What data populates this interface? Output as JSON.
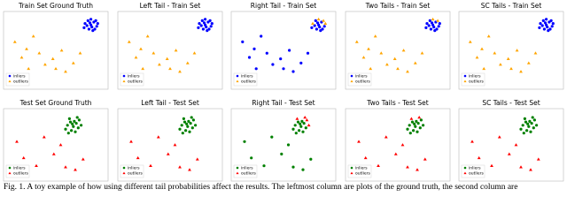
{
  "chart_data": [
    {
      "type": "scatter",
      "title": "Train Set Ground Truth",
      "xlim": [
        0,
        100
      ],
      "ylim": [
        0,
        100
      ],
      "legend": "lower left",
      "series": [
        {
          "name": "inliers",
          "color": "#0000ff",
          "marker": "circle",
          "x": [
            80,
            83,
            86,
            89,
            92,
            84,
            88,
            91,
            79,
            86,
            93,
            82,
            87,
            90,
            85
          ],
          "y": [
            88,
            92,
            86,
            90,
            84,
            80,
            78,
            92,
            82,
            94,
            88,
            85,
            83,
            80,
            89
          ]
        },
        {
          "name": "outliers",
          "color": "#ffa500",
          "marker": "triangle",
          "x": [
            8,
            27,
            20,
            33,
            47,
            56,
            39,
            22,
            60,
            68,
            75,
            50,
            15
          ],
          "y": [
            62,
            70,
            52,
            46,
            38,
            50,
            30,
            24,
            20,
            32,
            46,
            24,
            40
          ]
        }
      ]
    },
    {
      "type": "scatter",
      "title": "Left Tail - Train Set",
      "xlim": [
        0,
        100
      ],
      "ylim": [
        0,
        100
      ],
      "legend": "lower left",
      "series": [
        {
          "name": "inliers",
          "color": "#0000ff",
          "marker": "circle",
          "x": [
            80,
            83,
            86,
            89,
            92,
            84,
            88,
            91,
            79,
            86,
            93,
            82,
            87,
            90,
            85
          ],
          "y": [
            88,
            92,
            86,
            90,
            84,
            80,
            78,
            92,
            82,
            94,
            88,
            85,
            83,
            80,
            89
          ]
        },
        {
          "name": "outliers",
          "color": "#ffa500",
          "marker": "triangle",
          "x": [
            8,
            27,
            20,
            33,
            47,
            56,
            39,
            22,
            60,
            68,
            75,
            50,
            15
          ],
          "y": [
            62,
            70,
            52,
            46,
            38,
            50,
            30,
            24,
            20,
            32,
            46,
            24,
            40
          ]
        }
      ]
    },
    {
      "type": "scatter",
      "title": "Right Tail - Train Set",
      "xlim": [
        0,
        100
      ],
      "ylim": [
        0,
        100
      ],
      "legend": "lower left",
      "series": [
        {
          "name": "inliers",
          "color": "#0000ff",
          "marker": "circle",
          "x": [
            83,
            86,
            89,
            92,
            84,
            88,
            79,
            82,
            87,
            90,
            85,
            8,
            27,
            20,
            33,
            47,
            56,
            39,
            22,
            60,
            68,
            75,
            50,
            15
          ],
          "y": [
            92,
            86,
            90,
            84,
            80,
            78,
            82,
            85,
            83,
            80,
            89,
            62,
            70,
            52,
            46,
            38,
            50,
            30,
            24,
            20,
            32,
            46,
            24,
            40
          ]
        },
        {
          "name": "outliers",
          "color": "#ffa500",
          "marker": "triangle",
          "x": [
            80,
            91,
            86,
            93
          ],
          "y": [
            88,
            92,
            94,
            88
          ]
        }
      ]
    },
    {
      "type": "scatter",
      "title": "Two Tails - Train Set",
      "xlim": [
        0,
        100
      ],
      "ylim": [
        0,
        100
      ],
      "legend": "lower left",
      "series": [
        {
          "name": "inliers",
          "color": "#0000ff",
          "marker": "circle",
          "x": [
            80,
            83,
            86,
            89,
            92,
            84,
            88,
            79,
            93,
            82,
            87,
            90,
            85
          ],
          "y": [
            88,
            92,
            86,
            90,
            84,
            80,
            78,
            82,
            88,
            85,
            83,
            80,
            89
          ]
        },
        {
          "name": "outliers",
          "color": "#ffa500",
          "marker": "triangle",
          "x": [
            8,
            27,
            20,
            33,
            47,
            56,
            39,
            22,
            60,
            68,
            75,
            50,
            15,
            91,
            86
          ],
          "y": [
            62,
            70,
            52,
            46,
            38,
            50,
            30,
            24,
            20,
            32,
            46,
            24,
            40,
            92,
            94
          ]
        }
      ]
    },
    {
      "type": "scatter",
      "title": "SC Tails - Train Set",
      "xlim": [
        0,
        100
      ],
      "ylim": [
        0,
        100
      ],
      "legend": "lower left",
      "series": [
        {
          "name": "inliers",
          "color": "#0000ff",
          "marker": "circle",
          "x": [
            80,
            83,
            86,
            89,
            92,
            84,
            88,
            91,
            79,
            86,
            93,
            82,
            87,
            90,
            85
          ],
          "y": [
            88,
            92,
            86,
            90,
            84,
            80,
            78,
            92,
            82,
            94,
            88,
            85,
            83,
            80,
            89
          ]
        },
        {
          "name": "outliers",
          "color": "#ffa500",
          "marker": "triangle",
          "x": [
            8,
            27,
            20,
            33,
            47,
            56,
            39,
            22,
            60,
            68,
            75,
            50,
            15
          ],
          "y": [
            62,
            70,
            52,
            46,
            38,
            50,
            30,
            24,
            20,
            32,
            46,
            24,
            40
          ]
        }
      ]
    },
    {
      "type": "scatter",
      "title": "Test Set Ground Truth",
      "xlim": [
        0,
        100
      ],
      "ylim": [
        0,
        100
      ],
      "legend": "lower left",
      "series": [
        {
          "name": "inliers",
          "color": "#008000",
          "marker": "circle",
          "x": [
            62,
            65,
            68,
            71,
            74,
            66,
            70,
            60,
            73,
            64,
            76,
            69,
            63,
            72,
            67
          ],
          "y": [
            80,
            85,
            78,
            83,
            88,
            72,
            70,
            74,
            76,
            90,
            80,
            86,
            68,
            92,
            82
          ]
        },
        {
          "name": "outliers",
          "color": "#ff0000",
          "marker": "triangle",
          "x": [
            10,
            38,
            17,
            48,
            60,
            70,
            78,
            30,
            55
          ],
          "y": [
            55,
            62,
            30,
            36,
            16,
            12,
            28,
            18,
            50
          ]
        }
      ]
    },
    {
      "type": "scatter",
      "title": "Left Tail - Test Set",
      "xlim": [
        0,
        100
      ],
      "ylim": [
        0,
        100
      ],
      "legend": "lower left",
      "series": [
        {
          "name": "inliers",
          "color": "#008000",
          "marker": "circle",
          "x": [
            62,
            65,
            68,
            71,
            74,
            66,
            70,
            60,
            73,
            64,
            76,
            69,
            63,
            72,
            67
          ],
          "y": [
            80,
            85,
            78,
            83,
            88,
            72,
            70,
            74,
            76,
            90,
            80,
            86,
            68,
            92,
            82
          ]
        },
        {
          "name": "outliers",
          "color": "#ff0000",
          "marker": "triangle",
          "x": [
            10,
            38,
            17,
            48,
            60,
            70,
            78,
            30,
            55
          ],
          "y": [
            55,
            62,
            30,
            36,
            16,
            12,
            28,
            18,
            50
          ]
        }
      ]
    },
    {
      "type": "scatter",
      "title": "Right Tail - Test Set",
      "xlim": [
        0,
        100
      ],
      "ylim": [
        0,
        100
      ],
      "legend": "lower left",
      "series": [
        {
          "name": "inliers",
          "color": "#008000",
          "marker": "circle",
          "x": [
            62,
            65,
            68,
            71,
            66,
            70,
            60,
            73,
            69,
            63,
            67,
            10,
            38,
            17,
            48,
            60,
            70,
            78,
            30,
            55
          ],
          "y": [
            80,
            85,
            78,
            83,
            72,
            70,
            74,
            76,
            86,
            68,
            82,
            55,
            62,
            30,
            36,
            16,
            12,
            28,
            18,
            50
          ]
        },
        {
          "name": "outliers",
          "color": "#ff0000",
          "marker": "triangle",
          "x": [
            74,
            64,
            76,
            72
          ],
          "y": [
            88,
            90,
            80,
            92
          ]
        }
      ]
    },
    {
      "type": "scatter",
      "title": "Two Tails - Test Set",
      "xlim": [
        0,
        100
      ],
      "ylim": [
        0,
        100
      ],
      "legend": "lower left",
      "series": [
        {
          "name": "inliers",
          "color": "#008000",
          "marker": "circle",
          "x": [
            62,
            65,
            68,
            71,
            74,
            66,
            70,
            60,
            73,
            76,
            69,
            63,
            67
          ],
          "y": [
            80,
            85,
            78,
            83,
            88,
            72,
            70,
            74,
            76,
            80,
            86,
            68,
            82
          ]
        },
        {
          "name": "outliers",
          "color": "#ff0000",
          "marker": "triangle",
          "x": [
            10,
            38,
            17,
            48,
            60,
            70,
            78,
            30,
            55,
            72,
            64
          ],
          "y": [
            55,
            62,
            30,
            36,
            16,
            12,
            28,
            18,
            50,
            92,
            90
          ]
        }
      ]
    },
    {
      "type": "scatter",
      "title": "SC Tails - Test Set",
      "xlim": [
        0,
        100
      ],
      "ylim": [
        0,
        100
      ],
      "legend": "lower left",
      "series": [
        {
          "name": "inliers",
          "color": "#008000",
          "marker": "circle",
          "x": [
            62,
            65,
            68,
            71,
            74,
            66,
            70,
            60,
            73,
            64,
            76,
            69,
            63,
            72,
            67
          ],
          "y": [
            80,
            85,
            78,
            83,
            88,
            72,
            70,
            74,
            76,
            90,
            80,
            86,
            68,
            92,
            82
          ]
        },
        {
          "name": "outliers",
          "color": "#ff0000",
          "marker": "triangle",
          "x": [
            10,
            38,
            17,
            48,
            60,
            70,
            78,
            30,
            55
          ],
          "y": [
            55,
            62,
            30,
            36,
            16,
            12,
            28,
            18,
            50
          ]
        }
      ]
    }
  ],
  "caption": "Fig. 1.  A toy example of how using different tail probabilities affect the results. The leftmost column are plots of the ground truth, the second column are"
}
